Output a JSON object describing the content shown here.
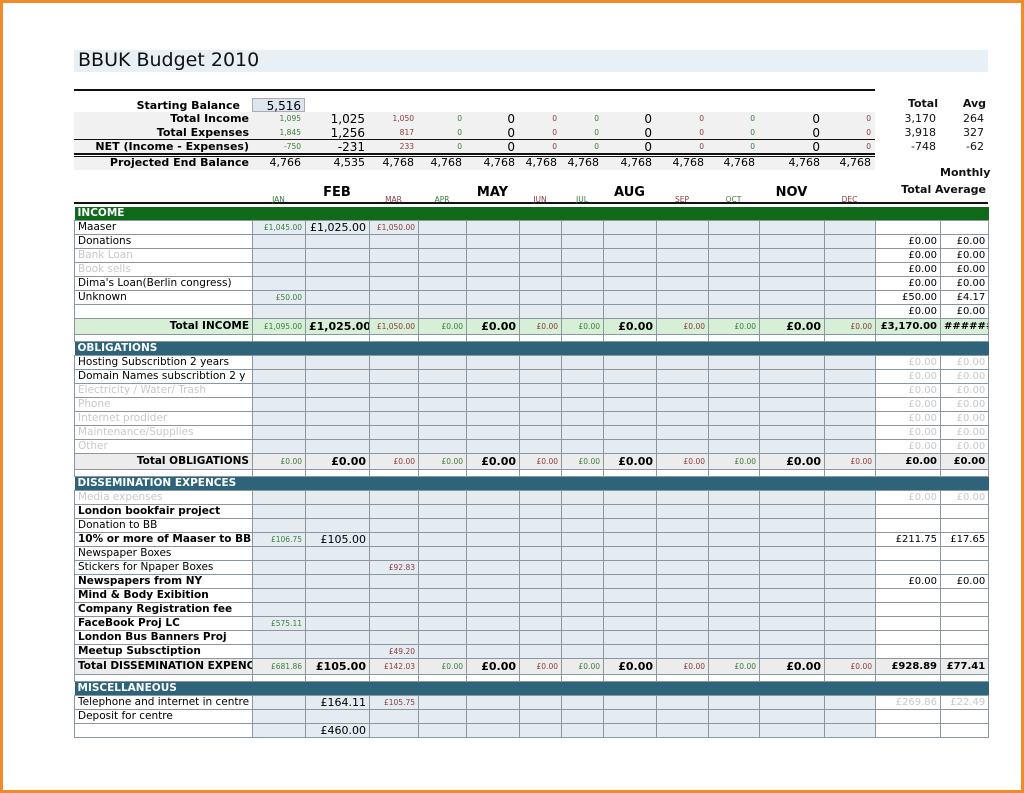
{
  "title": "BBUK Budget 2010",
  "colors": {
    "frame": "#f08a2a",
    "income_header": "#0f6a1a",
    "section_header": "#2e6479",
    "green_month": "#3b7d3b",
    "red_month": "#8a3b3b"
  },
  "months": [
    "JAN",
    "FEB",
    "MAR",
    "APR",
    "MAY",
    "JUN",
    "JUL",
    "AUG",
    "SEP",
    "OCT",
    "NOV",
    "DEC"
  ],
  "summary": {
    "total_label": "Total",
    "avg_label": "Avg",
    "monthly_label": "Monthly",
    "total_average_label": "Total Average",
    "starting_balance": {
      "label": "Starting Balance",
      "value": "5,516"
    },
    "rows": [
      {
        "label": "Total Income",
        "values": [
          "1,095",
          "1,025",
          "1,050",
          "0",
          "0",
          "0",
          "0",
          "0",
          "0",
          "0",
          "0",
          "0"
        ],
        "total": "3,170",
        "avg": "264"
      },
      {
        "label": "Total Expenses",
        "values": [
          "1,845",
          "1,256",
          "817",
          "0",
          "0",
          "0",
          "0",
          "0",
          "0",
          "0",
          "0",
          "0"
        ],
        "total": "3,918",
        "avg": "327"
      },
      {
        "label": "NET (Income - Expenses)",
        "values": [
          "-750",
          "-231",
          "233",
          "0",
          "0",
          "0",
          "0",
          "0",
          "0",
          "0",
          "0",
          "0"
        ],
        "total": "-748",
        "avg": "-62"
      },
      {
        "label": "Projected End Balance",
        "values": [
          "4,766",
          "4,535",
          "4,768",
          "4,768",
          "4,768",
          "4,768",
          "4,768",
          "4,768",
          "4,768",
          "4,768",
          "4,768",
          "4,768"
        ],
        "total": "",
        "avg": ""
      }
    ]
  },
  "sections": [
    {
      "title": "INCOME",
      "theme": "green",
      "rows": [
        {
          "label": "Maaser",
          "style": "normal",
          "values": [
            "£1,045.00",
            "£1,025.00",
            "£1,050.00",
            "",
            "",
            "",
            "",
            "",
            "",
            "",
            "",
            ""
          ],
          "total": "",
          "avg": ""
        },
        {
          "label": "Donations",
          "style": "normal",
          "values": [
            "",
            "",
            "",
            "",
            "",
            "",
            "",
            "",
            "",
            "",
            "",
            ""
          ],
          "total": "£0.00",
          "avg": "£0.00"
        },
        {
          "label": "Bank Loan",
          "style": "faded",
          "values": [
            "",
            "",
            "",
            "",
            "",
            "",
            "",
            "",
            "",
            "",
            "",
            ""
          ],
          "total": "£0.00",
          "avg": "£0.00"
        },
        {
          "label": "Book sells",
          "style": "faded",
          "values": [
            "",
            "",
            "",
            "",
            "",
            "",
            "",
            "",
            "",
            "",
            "",
            ""
          ],
          "total": "£0.00",
          "avg": "£0.00"
        },
        {
          "label": "Dima's Loan(Berlin congress)",
          "style": "normal",
          "values": [
            "",
            "",
            "",
            "",
            "",
            "",
            "",
            "",
            "",
            "",
            "",
            ""
          ],
          "total": "£0.00",
          "avg": "£0.00"
        },
        {
          "label": "Unknown",
          "style": "normal",
          "values": [
            "£50.00",
            "",
            "",
            "",
            "",
            "",
            "",
            "",
            "",
            "",
            "",
            ""
          ],
          "total": "£50.00",
          "avg": "£4.17"
        },
        {
          "label": "",
          "style": "normal",
          "values": [
            "",
            "",
            "",
            "",
            "",
            "",
            "",
            "",
            "",
            "",
            "",
            ""
          ],
          "total": "£0.00",
          "avg": "£0.00"
        }
      ],
      "total_row": {
        "label": "Total INCOME",
        "values": [
          "£1,095.00",
          "£1,025.00",
          "£1,050.00",
          "£0.00",
          "£0.00",
          "£0.00",
          "£0.00",
          "£0.00",
          "£0.00",
          "£0.00",
          "£0.00",
          "£0.00"
        ],
        "total": "£3,170.00",
        "avg": "######"
      }
    },
    {
      "title": "OBLIGATIONS",
      "theme": "blue",
      "rows": [
        {
          "label": "Hosting Subscribtion 2 years",
          "style": "normal",
          "values": [
            "",
            "",
            "",
            "",
            "",
            "",
            "",
            "",
            "",
            "",
            "",
            ""
          ],
          "total": "£0.00",
          "avg": "£0.00",
          "faded_totals": true
        },
        {
          "label": "Domain Names subscribtion 2 y",
          "style": "normal",
          "values": [
            "",
            "",
            "",
            "",
            "",
            "",
            "",
            "",
            "",
            "",
            "",
            ""
          ],
          "total": "£0.00",
          "avg": "£0.00",
          "faded_totals": true
        },
        {
          "label": "Electricity / Water/ Trash",
          "style": "faded",
          "values": [
            "",
            "",
            "",
            "",
            "",
            "",
            "",
            "",
            "",
            "",
            "",
            ""
          ],
          "total": "£0.00",
          "avg": "£0.00",
          "faded_totals": true
        },
        {
          "label": "Phone",
          "style": "faded",
          "values": [
            "",
            "",
            "",
            "",
            "",
            "",
            "",
            "",
            "",
            "",
            "",
            ""
          ],
          "total": "£0.00",
          "avg": "£0.00",
          "faded_totals": true
        },
        {
          "label": "Internet prodider",
          "style": "faded",
          "values": [
            "",
            "",
            "",
            "",
            "",
            "",
            "",
            "",
            "",
            "",
            "",
            ""
          ],
          "total": "£0.00",
          "avg": "£0.00",
          "faded_totals": true
        },
        {
          "label": "Maintenance/Supplies",
          "style": "faded",
          "values": [
            "",
            "",
            "",
            "",
            "",
            "",
            "",
            "",
            "",
            "",
            "",
            ""
          ],
          "total": "£0.00",
          "avg": "£0.00",
          "faded_totals": true
        },
        {
          "label": "Other",
          "style": "faded",
          "values": [
            "",
            "",
            "",
            "",
            "",
            "",
            "",
            "",
            "",
            "",
            "",
            ""
          ],
          "total": "£0.00",
          "avg": "£0.00",
          "faded_totals": true
        }
      ],
      "total_row": {
        "label": "Total OBLIGATIONS",
        "values": [
          "£0.00",
          "£0.00",
          "£0.00",
          "£0.00",
          "£0.00",
          "£0.00",
          "£0.00",
          "£0.00",
          "£0.00",
          "£0.00",
          "£0.00",
          "£0.00"
        ],
        "total": "£0.00",
        "avg": "£0.00"
      }
    },
    {
      "title": "DISSEMINATION EXPENCES",
      "theme": "blue",
      "rows": [
        {
          "label": "Media expenses",
          "style": "faded",
          "values": [
            "",
            "",
            "",
            "",
            "",
            "",
            "",
            "",
            "",
            "",
            "",
            ""
          ],
          "total": "£0.00",
          "avg": "£0.00",
          "faded_totals": true
        },
        {
          "label": "London bookfair project",
          "style": "bold",
          "values": [
            "",
            "",
            "",
            "",
            "",
            "",
            "",
            "",
            "",
            "",
            "",
            ""
          ],
          "total": "",
          "avg": ""
        },
        {
          "label": "Donation to BB",
          "style": "normal",
          "values": [
            "",
            "",
            "",
            "",
            "",
            "",
            "",
            "",
            "",
            "",
            "",
            ""
          ],
          "total": "",
          "avg": ""
        },
        {
          "label": "10% or more of Maaser to BB",
          "style": "bold",
          "values": [
            "£106.75",
            "£105.00",
            "",
            "",
            "",
            "",
            "",
            "",
            "",
            "",
            "",
            ""
          ],
          "total": "£211.75",
          "avg": "£17.65"
        },
        {
          "label": "Newspaper Boxes",
          "style": "normal",
          "values": [
            "",
            "",
            "",
            "",
            "",
            "",
            "",
            "",
            "",
            "",
            "",
            ""
          ],
          "total": "",
          "avg": ""
        },
        {
          "label": "Stickers for Npaper Boxes",
          "style": "normal",
          "values": [
            "",
            "",
            "£92.83",
            "",
            "",
            "",
            "",
            "",
            "",
            "",
            "",
            ""
          ],
          "total": "",
          "avg": ""
        },
        {
          "label": "Newspapers from NY",
          "style": "bold",
          "values": [
            "",
            "",
            "",
            "",
            "",
            "",
            "",
            "",
            "",
            "",
            "",
            ""
          ],
          "total": "£0.00",
          "avg": "£0.00"
        },
        {
          "label": "Mind & Body Exibition",
          "style": "bold",
          "values": [
            "",
            "",
            "",
            "",
            "",
            "",
            "",
            "",
            "",
            "",
            "",
            ""
          ],
          "total": "",
          "avg": ""
        },
        {
          "label": "Company Registration fee",
          "style": "bold",
          "values": [
            "",
            "",
            "",
            "",
            "",
            "",
            "",
            "",
            "",
            "",
            "",
            ""
          ],
          "total": "",
          "avg": ""
        },
        {
          "label": "FaceBook Proj LC",
          "style": "bold",
          "values": [
            "£575.11",
            "",
            "",
            "",
            "",
            "",
            "",
            "",
            "",
            "",
            "",
            ""
          ],
          "total": "",
          "avg": ""
        },
        {
          "label": "London Bus Banners Proj",
          "style": "bold",
          "values": [
            "",
            "",
            "",
            "",
            "",
            "",
            "",
            "",
            "",
            "",
            "",
            ""
          ],
          "total": "",
          "avg": ""
        },
        {
          "label": "Meetup Subsctiption",
          "style": "bold",
          "values": [
            "",
            "",
            "£49.20",
            "",
            "",
            "",
            "",
            "",
            "",
            "",
            "",
            ""
          ],
          "total": "",
          "avg": ""
        }
      ],
      "total_row": {
        "label": "Total DISSEMINATION EXPENCES",
        "values": [
          "£681.86",
          "£105.00",
          "£142.03",
          "£0.00",
          "£0.00",
          "£0.00",
          "£0.00",
          "£0.00",
          "£0.00",
          "£0.00",
          "£0.00",
          "£0.00"
        ],
        "total": "£928.89",
        "avg": "£77.41"
      }
    },
    {
      "title": "MISCELLANEOUS",
      "theme": "blue",
      "rows": [
        {
          "label": "Telephone and internet in centre",
          "style": "normal",
          "values": [
            "",
            "£164.11",
            "£105.75",
            "",
            "",
            "",
            "",
            "",
            "",
            "",
            "",
            ""
          ],
          "total": "£269.86",
          "avg": "£22.49",
          "faded_totals": true
        },
        {
          "label": "Deposit for centre",
          "style": "normal",
          "values": [
            "",
            "",
            "",
            "",
            "",
            "",
            "",
            "",
            "",
            "",
            "",
            ""
          ],
          "total": "",
          "avg": ""
        },
        {
          "label": "",
          "style": "normal",
          "values": [
            "",
            "£460.00",
            "",
            "",
            "",
            "",
            "",
            "",
            "",
            "",
            "",
            ""
          ],
          "total": "",
          "avg": ""
        }
      ]
    }
  ]
}
